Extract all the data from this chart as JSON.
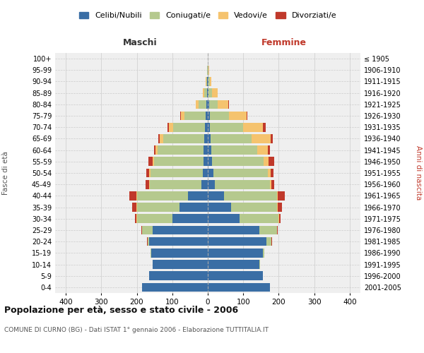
{
  "age_groups": [
    "0-4",
    "5-9",
    "10-14",
    "15-19",
    "20-24",
    "25-29",
    "30-34",
    "35-39",
    "40-44",
    "45-49",
    "50-54",
    "55-59",
    "60-64",
    "65-69",
    "70-74",
    "75-79",
    "80-84",
    "85-89",
    "90-94",
    "95-99",
    "100+"
  ],
  "birth_years": [
    "2001-2005",
    "1996-2000",
    "1991-1995",
    "1986-1990",
    "1981-1985",
    "1976-1980",
    "1971-1975",
    "1966-1970",
    "1961-1965",
    "1956-1960",
    "1951-1955",
    "1946-1950",
    "1941-1945",
    "1936-1940",
    "1931-1935",
    "1926-1930",
    "1921-1925",
    "1916-1920",
    "1911-1915",
    "1906-1910",
    "≤ 1905"
  ],
  "males": {
    "celibi": [
      185,
      165,
      155,
      160,
      165,
      155,
      100,
      80,
      55,
      18,
      14,
      12,
      12,
      10,
      8,
      5,
      3,
      1,
      1,
      0,
      0
    ],
    "coniugati": [
      0,
      0,
      1,
      2,
      5,
      30,
      100,
      120,
      145,
      145,
      148,
      140,
      130,
      115,
      90,
      60,
      22,
      8,
      3,
      1,
      0
    ],
    "vedovi": [
      0,
      0,
      0,
      0,
      0,
      0,
      1,
      1,
      2,
      2,
      3,
      4,
      5,
      10,
      12,
      10,
      8,
      4,
      1,
      0,
      0
    ],
    "divorziati": [
      0,
      0,
      0,
      0,
      1,
      2,
      5,
      12,
      18,
      10,
      8,
      12,
      5,
      5,
      3,
      2,
      1,
      0,
      0,
      0,
      0
    ]
  },
  "females": {
    "nubili": [
      175,
      155,
      145,
      155,
      165,
      145,
      90,
      65,
      45,
      20,
      15,
      12,
      10,
      8,
      5,
      5,
      3,
      2,
      1,
      0,
      0
    ],
    "coniugate": [
      0,
      1,
      2,
      5,
      15,
      50,
      110,
      130,
      150,
      155,
      155,
      145,
      130,
      115,
      95,
      55,
      25,
      10,
      4,
      1,
      0
    ],
    "vedove": [
      0,
      0,
      0,
      0,
      0,
      0,
      1,
      2,
      3,
      5,
      8,
      15,
      30,
      55,
      55,
      50,
      30,
      15,
      5,
      2,
      0
    ],
    "divorziate": [
      0,
      0,
      0,
      0,
      1,
      2,
      5,
      12,
      18,
      8,
      8,
      15,
      5,
      5,
      8,
      1,
      1,
      0,
      0,
      0,
      0
    ]
  },
  "colors": {
    "celibi": "#3a6ea5",
    "coniugati": "#b5c98e",
    "vedovi": "#f5c36e",
    "divorziati": "#c0392b"
  },
  "title": "Popolazione per età, sesso e stato civile - 2006",
  "subtitle": "COMUNE DI CURNO (BG) - Dati ISTAT 1° gennaio 2006 - Elaborazione TUTTITALIA.IT",
  "xlabel_left": "Maschi",
  "xlabel_right": "Femmine",
  "ylabel_left": "Fasce di età",
  "ylabel_right": "Anni di nascita",
  "xlim": 430,
  "background_color": "#ffffff",
  "grid_color": "#cccccc",
  "legend_labels": [
    "Celibi/Nubili",
    "Coniugati/e",
    "Vedovi/e",
    "Divorziati/e"
  ]
}
